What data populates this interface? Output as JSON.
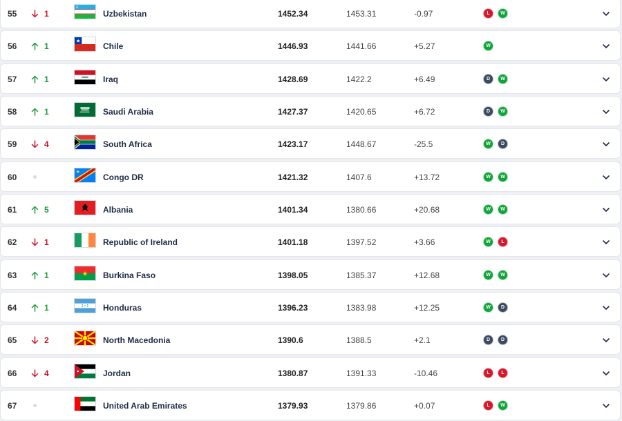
{
  "colors": {
    "up": "#1f9d3a",
    "down": "#d0142c",
    "win": "#12a33a",
    "loss": "#d4182c",
    "draw": "#3c4960"
  },
  "icons": {
    "up": "arrow-up-icon",
    "down": "arrow-down-icon",
    "same": "no-change-dot-icon",
    "expand": "chevron-down-icon"
  },
  "rows": [
    {
      "rank": "55",
      "move_dir": "down",
      "move": "1",
      "country": "Uzbekistan",
      "flag": "uzbekistan-flag",
      "total": "1452.34",
      "previous": "1453.31",
      "diff": "-0.97",
      "form": [
        "L",
        "W"
      ]
    },
    {
      "rank": "56",
      "move_dir": "up",
      "move": "1",
      "country": "Chile",
      "flag": "chile-flag",
      "total": "1446.93",
      "previous": "1441.66",
      "diff": "+5.27",
      "form": [
        "W"
      ]
    },
    {
      "rank": "57",
      "move_dir": "up",
      "move": "1",
      "country": "Iraq",
      "flag": "iraq-flag",
      "total": "1428.69",
      "previous": "1422.2",
      "diff": "+6.49",
      "form": [
        "D",
        "W"
      ]
    },
    {
      "rank": "58",
      "move_dir": "up",
      "move": "1",
      "country": "Saudi Arabia",
      "flag": "saudi-arabia-flag",
      "total": "1427.37",
      "previous": "1420.65",
      "diff": "+6.72",
      "form": [
        "D",
        "W"
      ]
    },
    {
      "rank": "59",
      "move_dir": "down",
      "move": "4",
      "country": "South Africa",
      "flag": "south-africa-flag",
      "total": "1423.17",
      "previous": "1448.67",
      "diff": "-25.5",
      "form": [
        "W",
        "D"
      ]
    },
    {
      "rank": "60",
      "move_dir": "same",
      "move": "",
      "country": "Congo DR",
      "flag": "congo-dr-flag",
      "total": "1421.32",
      "previous": "1407.6",
      "diff": "+13.72",
      "form": [
        "W",
        "W"
      ]
    },
    {
      "rank": "61",
      "move_dir": "up",
      "move": "5",
      "country": "Albania",
      "flag": "albania-flag",
      "total": "1401.34",
      "previous": "1380.66",
      "diff": "+20.68",
      "form": [
        "W",
        "W"
      ]
    },
    {
      "rank": "62",
      "move_dir": "down",
      "move": "1",
      "country": "Republic of Ireland",
      "flag": "ireland-flag",
      "total": "1401.18",
      "previous": "1397.52",
      "diff": "+3.66",
      "form": [
        "W",
        "L"
      ]
    },
    {
      "rank": "63",
      "move_dir": "up",
      "move": "1",
      "country": "Burkina Faso",
      "flag": "burkina-faso-flag",
      "total": "1398.05",
      "previous": "1385.37",
      "diff": "+12.68",
      "form": [
        "W",
        "W"
      ]
    },
    {
      "rank": "64",
      "move_dir": "up",
      "move": "1",
      "country": "Honduras",
      "flag": "honduras-flag",
      "total": "1396.23",
      "previous": "1383.98",
      "diff": "+12.25",
      "form": [
        "W",
        "D"
      ]
    },
    {
      "rank": "65",
      "move_dir": "down",
      "move": "2",
      "country": "North Macedonia",
      "flag": "north-macedonia-flag",
      "total": "1390.6",
      "previous": "1388.5",
      "diff": "+2.1",
      "form": [
        "D",
        "D"
      ]
    },
    {
      "rank": "66",
      "move_dir": "down",
      "move": "4",
      "country": "Jordan",
      "flag": "jordan-flag",
      "total": "1380.87",
      "previous": "1391.33",
      "diff": "-10.46",
      "form": [
        "L",
        "L"
      ]
    },
    {
      "rank": "67",
      "move_dir": "same",
      "move": "",
      "country": "United Arab Emirates",
      "flag": "uae-flag",
      "total": "1379.93",
      "previous": "1379.86",
      "diff": "+0.07",
      "form": [
        "L",
        "W"
      ]
    }
  ]
}
